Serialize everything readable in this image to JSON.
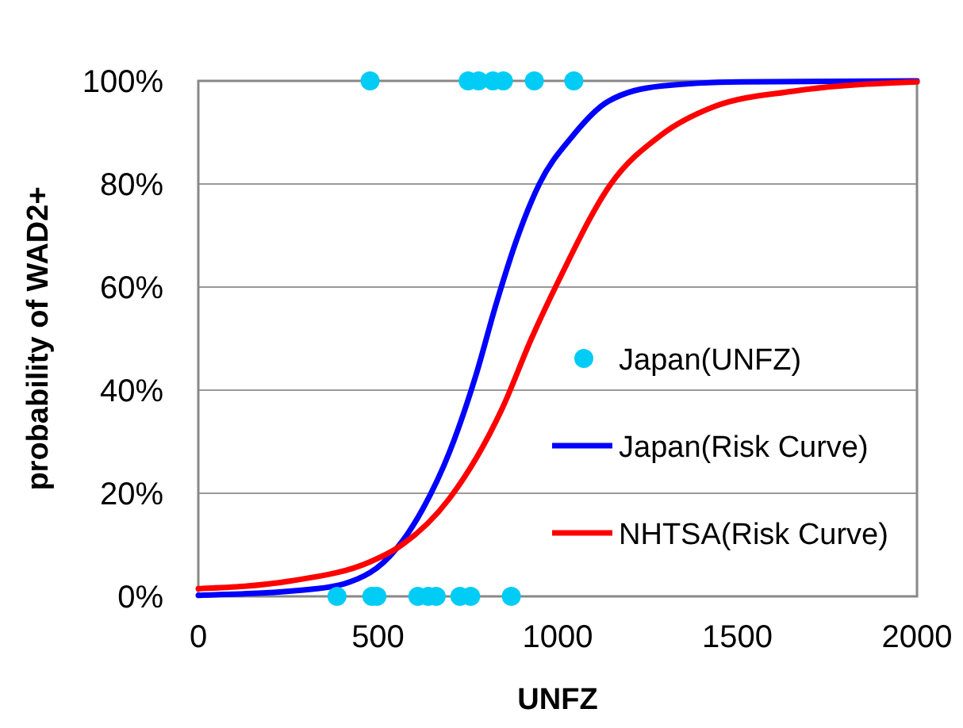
{
  "chart_data": {
    "type": "line",
    "xlabel": "UNFZ",
    "ylabel": "probability of WAD2+",
    "xlim": [
      0,
      2000
    ],
    "xticks": [
      0,
      500,
      1000,
      1500,
      2000
    ],
    "ylim": [
      0,
      100
    ],
    "yticks": [
      {
        "value": 0,
        "label": "0%"
      },
      {
        "value": 20,
        "label": "20%"
      },
      {
        "value": 40,
        "label": "40%"
      },
      {
        "value": 60,
        "label": "60%"
      },
      {
        "value": 80,
        "label": "80%"
      },
      {
        "value": 100,
        "label": "100%"
      }
    ],
    "grid": "y",
    "legend": "bottom right",
    "series": [
      {
        "name": "Japan(UNFZ)",
        "type": "scatter",
        "marker": "circle",
        "color": "#00ccf5",
        "x": [
          478,
          751,
          780,
          820,
          849,
          935,
          1045,
          386,
          483,
          497,
          611,
          640,
          662,
          728,
          758,
          871
        ],
        "values": [
          100,
          100,
          100,
          100,
          100,
          100,
          100,
          0,
          0,
          0,
          0,
          0,
          0,
          0,
          0,
          0
        ]
      },
      {
        "name": "Japan(Risk Curve)",
        "color": "#0000ff",
        "x": [
          0,
          331,
          478,
          552,
          625,
          699,
          773,
          830,
          890,
          949,
          1038,
          1140,
          1288,
          1508,
          2000
        ],
        "values": [
          0.2,
          1.5,
          4.6,
          9.3,
          17,
          28,
          43,
          57,
          70,
          80,
          89,
          96,
          99,
          99.8,
          100
        ]
      },
      {
        "name": "NHTSA(Risk Curve)",
        "color": "#ff0000",
        "x": [
          0,
          258,
          478,
          552,
          699,
          846,
          927,
          1008,
          1148,
          1288,
          1435,
          1656,
          2000
        ],
        "values": [
          1.5,
          3,
          6.7,
          9.3,
          19,
          36.5,
          50,
          62,
          80,
          89.5,
          95,
          98,
          99.8
        ]
      }
    ]
  }
}
